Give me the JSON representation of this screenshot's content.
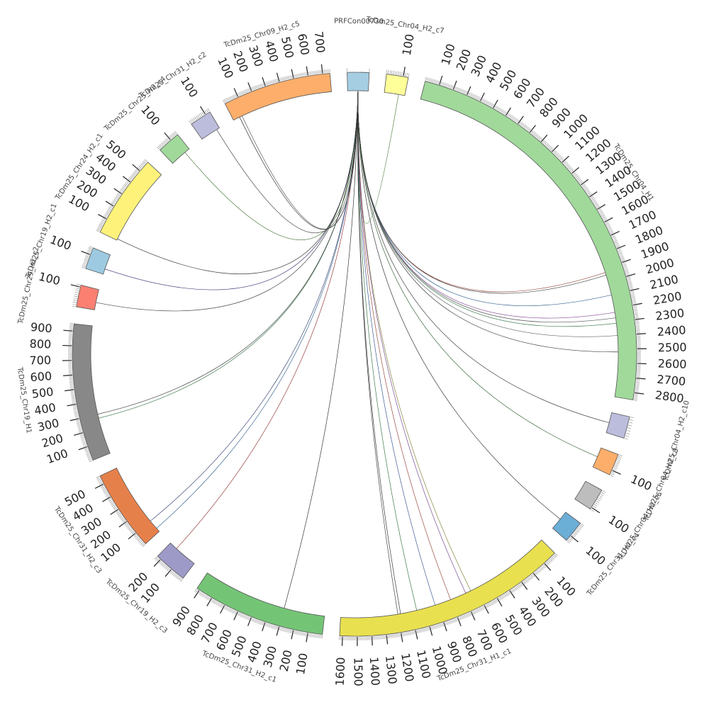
{
  "chart_data": {
    "type": "chord",
    "hub": "PRFCon00730",
    "segments": [
      {
        "name": "PRFCon00730",
        "length": 10,
        "color": "#a6cee3"
      },
      {
        "name": "TcDm25_Chr04_H2_c7",
        "length": 130,
        "color": "#ffff99"
      },
      {
        "name": "TcDm25_Chr04_H1",
        "length": 2850,
        "color": "#a1d99b"
      },
      {
        "name": "TcDm25_Chr04_H2_c10",
        "length": 80,
        "color": "#bcbddc"
      },
      {
        "name": "TcDm25_Chr04_H2_c8",
        "length": 130,
        "color": "#fdae6b"
      },
      {
        "name": "TcDm25_Chr04_H2_c6",
        "length": 110,
        "color": "#bdbdbd"
      },
      {
        "name": "TcDm25_Chr31_H2_c4",
        "length": 140,
        "color": "#6baed6"
      },
      {
        "name": "TcDm25_Chr31_H1_c1",
        "length": 1620,
        "color": "#e8e04f"
      },
      {
        "name": "TcDm25_Chr31_H2_c1",
        "length": 920,
        "color": "#74c476"
      },
      {
        "name": "TcDm25_Chr19_H2_c3",
        "length": 230,
        "color": "#9e9ac8"
      },
      {
        "name": "TcDm25_Chr31_H2_c3",
        "length": 560,
        "color": "#e6804a"
      },
      {
        "name": "TcDm25_Chr19_H1",
        "length": 950,
        "color": "#888888"
      },
      {
        "name": "TcDm25_Chr29_H2_c2",
        "length": 110,
        "color": "#fb8072"
      },
      {
        "name": "TcDm25_Chr19_H2_c1",
        "length": 150,
        "color": "#9ecae1"
      },
      {
        "name": "TcDm25_Chr24_H2_c1",
        "length": 580,
        "color": "#fff27a"
      },
      {
        "name": "TcDm25_Chr25_H2_c4",
        "length": 160,
        "color": "#a1d99b"
      },
      {
        "name": "TcDm25_Chr31_H2_c2",
        "length": 130,
        "color": "#bcbddc"
      },
      {
        "name": "TcDm25_Chr09_H2_c5",
        "length": 750,
        "color": "#fdae6b"
      }
    ],
    "links": [
      {
        "target": "TcDm25_Chr04_H2_c7",
        "pos": 90,
        "color": "#4a7a3a"
      },
      {
        "target": "TcDm25_Chr04_H1",
        "pos": 1930,
        "color": "#8b3a2a"
      },
      {
        "target": "TcDm25_Chr04_H1",
        "pos": 1950,
        "color": "#333333"
      },
      {
        "target": "TcDm25_Chr04_H1",
        "pos": 2100,
        "color": "#2a5a8a"
      },
      {
        "target": "TcDm25_Chr04_H1",
        "pos": 2230,
        "color": "#7a3a8a"
      },
      {
        "target": "TcDm25_Chr04_H1",
        "pos": 2270,
        "color": "#444444"
      },
      {
        "target": "TcDm25_Chr04_H1",
        "pos": 2310,
        "color": "#3a7a4a"
      },
      {
        "target": "TcDm25_Chr04_H1",
        "pos": 2400,
        "color": "#555555"
      },
      {
        "target": "TcDm25_Chr04_H1",
        "pos": 2520,
        "color": "#222222"
      },
      {
        "target": "TcDm25_Chr04_H2_c10",
        "pos": 40,
        "color": "#333333"
      },
      {
        "target": "TcDm25_Chr04_H2_c8",
        "pos": 60,
        "color": "#2a5a2a"
      },
      {
        "target": "TcDm25_Chr31_H2_c4",
        "pos": 60,
        "color": "#222222"
      },
      {
        "target": "TcDm25_Chr31_H1_c1",
        "pos": 640,
        "color": "#7a7a2a"
      },
      {
        "target": "TcDm25_Chr31_H1_c1",
        "pos": 680,
        "color": "#6a3a8a"
      },
      {
        "target": "TcDm25_Chr31_H1_c1",
        "pos": 800,
        "color": "#8b3a2a"
      },
      {
        "target": "TcDm25_Chr31_H1_c1",
        "pos": 920,
        "color": "#2a4a8a"
      },
      {
        "target": "TcDm25_Chr31_H1_c1",
        "pos": 1060,
        "color": "#2a6a3a"
      },
      {
        "target": "TcDm25_Chr31_H1_c1",
        "pos": 1180,
        "color": "#222222"
      },
      {
        "target": "TcDm25_Chr31_H1_c1",
        "pos": 1200,
        "color": "#333333"
      },
      {
        "target": "TcDm25_Chr31_H2_c1",
        "pos": 300,
        "color": "#222222"
      },
      {
        "target": "TcDm25_Chr19_H2_c3",
        "pos": 170,
        "color": "#8b2a2a"
      },
      {
        "target": "TcDm25_Chr31_H2_c3",
        "pos": 30,
        "color": "#2a5a8a"
      },
      {
        "target": "TcDm25_Chr31_H2_c3",
        "pos": 100,
        "color": "#2a3a6a"
      },
      {
        "target": "TcDm25_Chr19_H1",
        "pos": 270,
        "color": "#2a6a3a"
      },
      {
        "target": "TcDm25_Chr19_H1",
        "pos": 300,
        "color": "#333333"
      },
      {
        "target": "TcDm25_Chr29_H2_c2",
        "pos": 40,
        "color": "#333333"
      },
      {
        "target": "TcDm25_Chr19_H2_c1",
        "pos": 40,
        "color": "#2a2a6a"
      },
      {
        "target": "TcDm25_Chr24_H2_c1",
        "pos": 10,
        "color": "#222222"
      },
      {
        "target": "TcDm25_Chr25_H2_c4",
        "pos": 120,
        "color": "#3a6a2a"
      },
      {
        "target": "TcDm25_Chr31_H2_c2",
        "pos": 110,
        "color": "#333333"
      },
      {
        "target": "TcDm25_Chr09_H2_c5",
        "pos": 50,
        "color": "#222222"
      },
      {
        "target": "TcDm25_Chr09_H2_c5",
        "pos": 70,
        "color": "#444444"
      }
    ]
  }
}
